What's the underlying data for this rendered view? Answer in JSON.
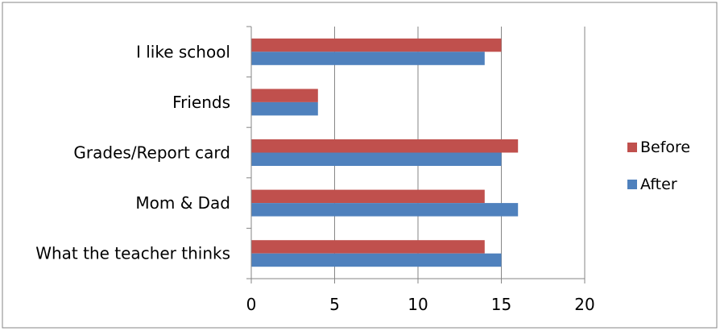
{
  "chart_data": {
    "type": "bar",
    "orientation": "horizontal",
    "categories": [
      "I like school",
      "Friends",
      "Grades/Report card",
      "Mom & Dad",
      "What the teacher thinks"
    ],
    "series": [
      {
        "name": "Before",
        "color": "#C0504D",
        "values": [
          15,
          4,
          16,
          14,
          14
        ]
      },
      {
        "name": "After",
        "color": "#4F81BD",
        "values": [
          14,
          4,
          15,
          16,
          15
        ]
      }
    ],
    "xlim": [
      0,
      20
    ],
    "xticks": [
      0,
      5,
      10,
      15,
      20
    ],
    "grid": "vertical major gridlines",
    "legend_position": "right",
    "title": "",
    "xlabel": "",
    "ylabel": ""
  }
}
